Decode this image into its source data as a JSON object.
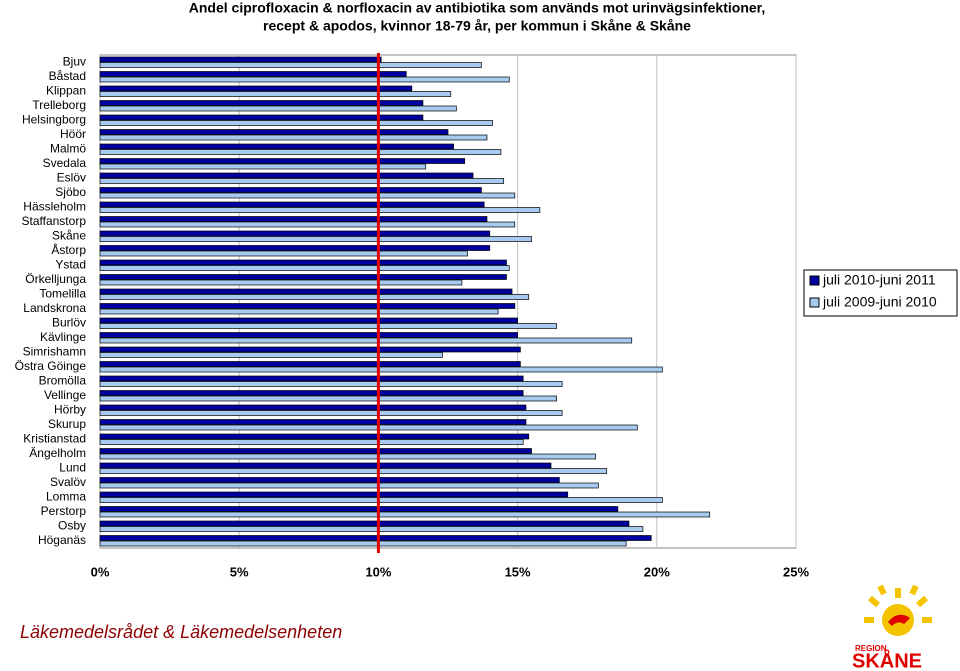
{
  "chart_data": {
    "type": "hbar",
    "title": "Andel ciprofloxacin & norfloxacin av antibiotika som används mot urinvägsinfektioner,",
    "subtitle": "recept & apodos, kvinnor 18-79 år, per kommun i Skåne & Skåne",
    "categories": [
      "Bjuv",
      "Båstad",
      "Klippan",
      "Trelleborg",
      "Helsingborg",
      "Höör",
      "Malmö",
      "Svedala",
      "Eslöv",
      "Sjöbo",
      "Hässleholm",
      "Staffanstorp",
      "Skåne",
      "Åstorp",
      "Ystad",
      "Örkelljunga",
      "Tomelilla",
      "Landskrona",
      "Burlöv",
      "Kävlinge",
      "Simrishamn",
      "Östra Göinge",
      "Bromölla",
      "Vellinge",
      "Hörby",
      "Skurup",
      "Kristianstad",
      "Ängelholm",
      "Lund",
      "Svalöv",
      "Lomma",
      "Perstorp",
      "Osby",
      "Höganäs"
    ],
    "series": [
      {
        "name": "juli 2010-juni 2011",
        "color": "#0000a0",
        "values": [
          10.1,
          11.0,
          11.2,
          11.6,
          11.6,
          12.5,
          12.7,
          13.1,
          13.4,
          13.7,
          13.8,
          13.9,
          14.0,
          14.0,
          14.6,
          14.6,
          14.8,
          14.9,
          15.0,
          15.0,
          15.1,
          15.1,
          15.2,
          15.2,
          15.3,
          15.3,
          15.4,
          15.5,
          16.2,
          16.5,
          16.8,
          18.6,
          19.0,
          19.8
        ]
      },
      {
        "name": "juli 2009-juni 2010",
        "color": "#a6caf0",
        "values": [
          13.7,
          14.7,
          12.6,
          12.8,
          14.1,
          13.9,
          14.4,
          11.7,
          14.5,
          14.9,
          15.8,
          14.9,
          15.5,
          13.2,
          14.7,
          13.0,
          15.4,
          14.3,
          16.4,
          19.1,
          12.3,
          20.2,
          16.6,
          16.4,
          16.6,
          19.3,
          15.2,
          17.8,
          18.2,
          17.9,
          20.2,
          21.9,
          19.5,
          18.9
        ]
      }
    ],
    "xlim": [
      0,
      25
    ],
    "xticks": [
      {
        "value": 0,
        "label": "0%"
      },
      {
        "value": 5,
        "label": "5%"
      },
      {
        "value": 10,
        "label": "10%"
      },
      {
        "value": 15,
        "label": "15%"
      },
      {
        "value": 20,
        "label": "20%"
      },
      {
        "value": 25,
        "label": "25%"
      }
    ],
    "grid": true,
    "legend": "right",
    "reference_line": {
      "value": 10,
      "color": "#e00000"
    }
  },
  "footer": "Läkemedelsrådet & Läkemedelsenheten",
  "logo": {
    "top": "REGION",
    "name": "SKÅNE"
  }
}
